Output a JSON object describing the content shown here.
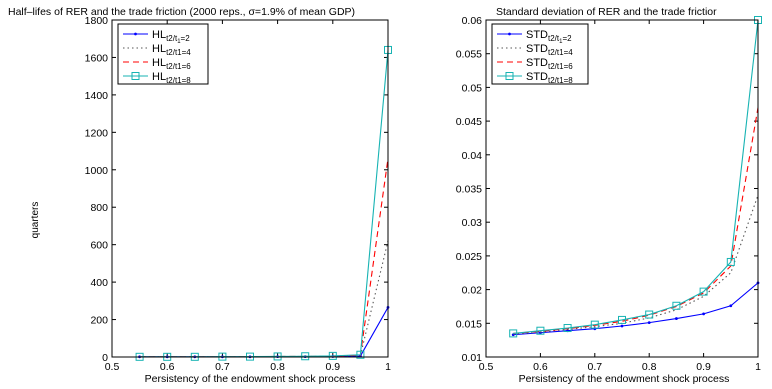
{
  "chart_data": [
    {
      "type": "line",
      "title": "Half–lifes of RER and the trade friction (2000 reps., σ=1.9% of mean GDP)",
      "xlabel": "Persistency of the endowment shock process",
      "ylabel": "quarters",
      "xlim": [
        0.5,
        1.0
      ],
      "ylim": [
        0,
        1800
      ],
      "xticks": [
        0.5,
        0.6,
        0.7,
        0.8,
        0.9,
        1.0
      ],
      "xtick_labels": [
        "0.5",
        "0.6",
        "0.7",
        "0.8",
        "0.9",
        "1"
      ],
      "yticks": [
        0,
        200,
        400,
        600,
        800,
        1000,
        1200,
        1400,
        1600,
        1800
      ],
      "ytick_labels": [
        "0",
        "200",
        "400",
        "600",
        "800",
        "1000",
        "1200",
        "1400",
        "1600",
        "1800"
      ],
      "grid": false,
      "legend_position": "top-left",
      "x": [
        0.55,
        0.6,
        0.65,
        0.7,
        0.75,
        0.8,
        0.85,
        0.9,
        0.95,
        1.0
      ],
      "series": [
        {
          "name_base": "HL",
          "name_sub": "t2/t",
          "name_subsub": "1",
          "name_sub_tail": "=2",
          "color": "#0000ff",
          "dash": "",
          "marker": "dot",
          "values": [
            1,
            1,
            1,
            1,
            1,
            2,
            2,
            3,
            5,
            265
          ]
        },
        {
          "name_base": "HL",
          "name_sub": "t2/t1=4",
          "name_subsub": "",
          "name_sub_tail": "",
          "color": "#555555",
          "dash": "1.5,3",
          "marker": "none",
          "values": [
            1,
            1,
            1,
            1,
            2,
            2,
            3,
            4,
            8,
            620
          ]
        },
        {
          "name_base": "HL",
          "name_sub": "t2/t1=6",
          "name_subsub": "",
          "name_sub_tail": "",
          "color": "#ff0000",
          "dash": "6,4",
          "marker": "none",
          "values": [
            1,
            1,
            1,
            1,
            2,
            3,
            3,
            5,
            10,
            1060
          ]
        },
        {
          "name_base": "HL",
          "name_sub": "t2/t1=8",
          "name_subsub": "",
          "name_sub_tail": "",
          "color": "#17b3b3",
          "dash": "",
          "marker": "square",
          "values": [
            1,
            1,
            1,
            2,
            2,
            3,
            4,
            6,
            12,
            1640
          ]
        }
      ]
    },
    {
      "type": "line",
      "title": "Standard deviation of RER and the trade frictior",
      "xlabel": "Persistency of the endowment shock process",
      "ylabel": "",
      "xlim": [
        0.5,
        1.0
      ],
      "ylim": [
        0.01,
        0.06
      ],
      "xticks": [
        0.5,
        0.6,
        0.7,
        0.8,
        0.9,
        1.0
      ],
      "xtick_labels": [
        "0.5",
        "0.6",
        "0.7",
        "0.8",
        "0.9",
        "1"
      ],
      "yticks": [
        0.01,
        0.015,
        0.02,
        0.025,
        0.03,
        0.035,
        0.04,
        0.045,
        0.05,
        0.055,
        0.06
      ],
      "ytick_labels": [
        "0.01",
        "0.015",
        "0.02",
        "0.025",
        "0.03",
        "0.035",
        "0.04",
        "0.045",
        "0.05",
        "0.055",
        "0.06"
      ],
      "grid": false,
      "legend_position": "top-left",
      "x": [
        0.55,
        0.6,
        0.65,
        0.7,
        0.75,
        0.8,
        0.85,
        0.9,
        0.95,
        1.0
      ],
      "series": [
        {
          "name_base": "STD",
          "name_sub": "t2/t",
          "name_subsub": "1",
          "name_sub_tail": "=2",
          "color": "#0000ff",
          "dash": "",
          "marker": "dot",
          "values": [
            0.0133,
            0.0136,
            0.0139,
            0.0142,
            0.0146,
            0.0151,
            0.0157,
            0.0164,
            0.0176,
            0.021
          ]
        },
        {
          "name_base": "STD",
          "name_sub": "t2/t1=4",
          "name_subsub": "",
          "name_sub_tail": "",
          "color": "#555555",
          "dash": "1.5,3",
          "marker": "none",
          "values": [
            0.0134,
            0.0137,
            0.0141,
            0.0145,
            0.015,
            0.0158,
            0.017,
            0.019,
            0.0225,
            0.034
          ]
        },
        {
          "name_base": "STD",
          "name_sub": "t2/t1=6",
          "name_subsub": "",
          "name_sub_tail": "",
          "color": "#ff0000",
          "dash": "6,4",
          "marker": "none",
          "values": [
            0.0135,
            0.0138,
            0.0142,
            0.0147,
            0.0153,
            0.0162,
            0.0175,
            0.0195,
            0.0235,
            0.047
          ]
        },
        {
          "name_base": "STD",
          "name_sub": "t2/t1=8",
          "name_subsub": "",
          "name_sub_tail": "",
          "color": "#17b3b3",
          "dash": "",
          "marker": "square",
          "values": [
            0.0135,
            0.0139,
            0.0143,
            0.0148,
            0.0155,
            0.0163,
            0.0176,
            0.0197,
            0.0241,
            0.06
          ]
        }
      ]
    }
  ]
}
